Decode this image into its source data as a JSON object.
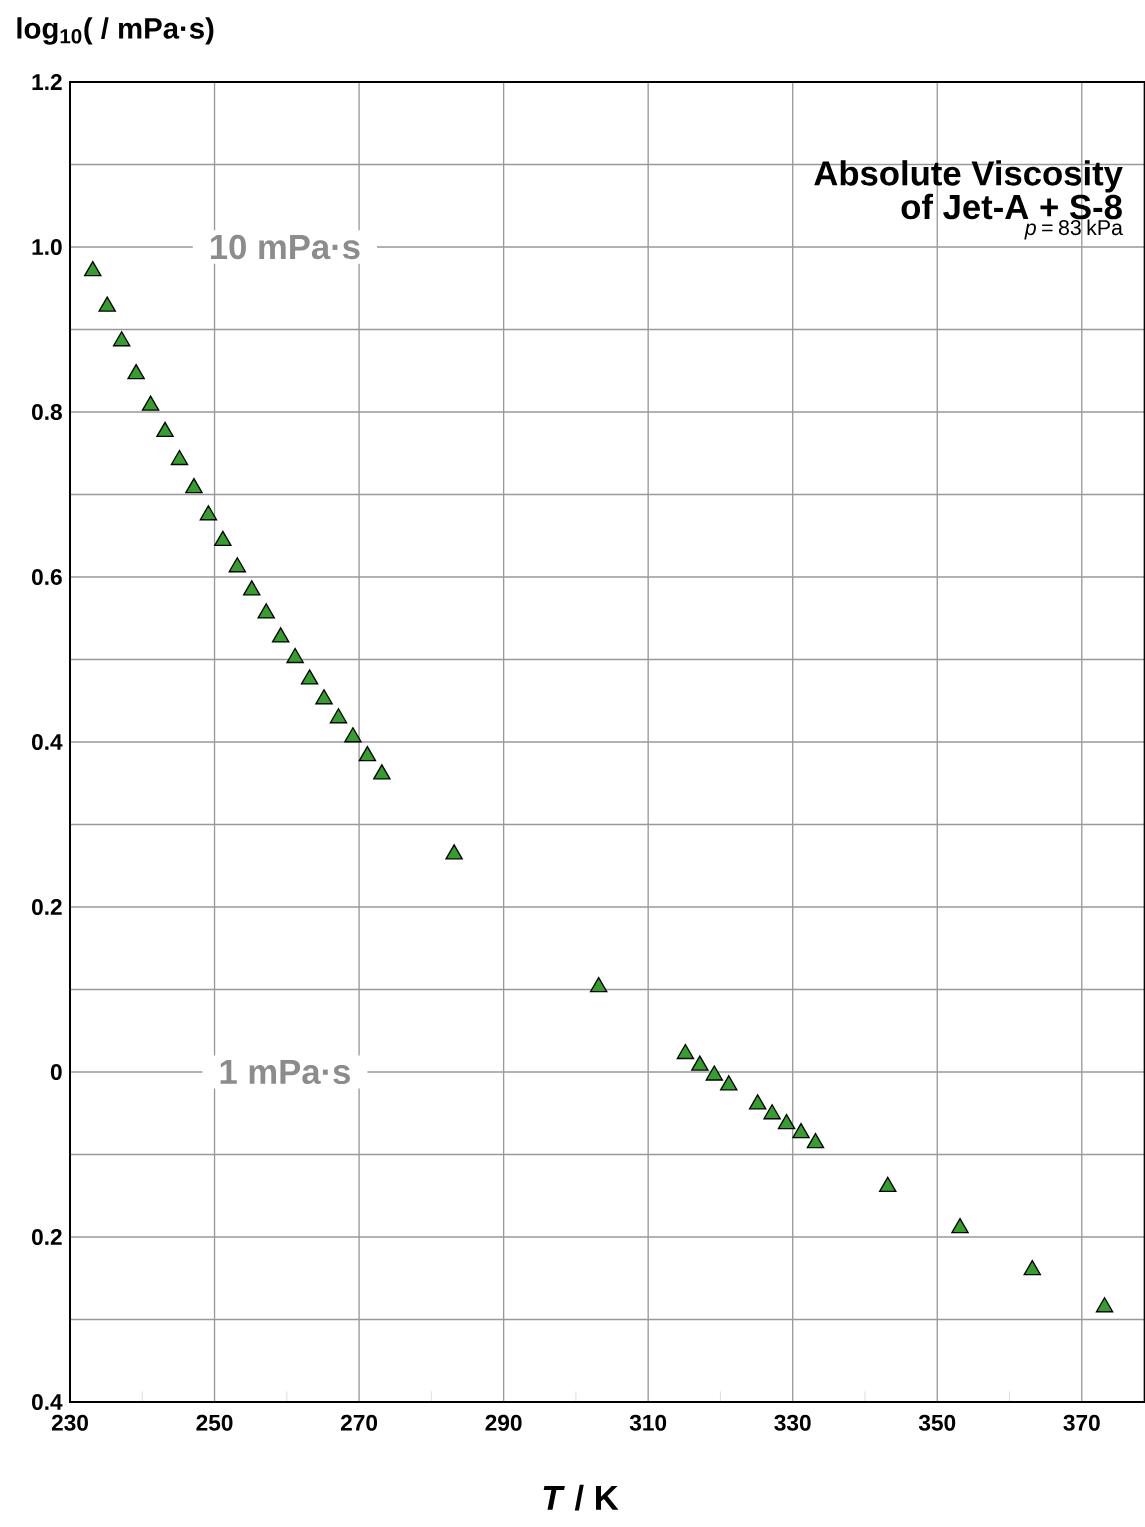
{
  "chart_data": {
    "type": "scatter",
    "title": "Absolute Viscosity of  Jet-A + S-8",
    "subtitle": "*p* = 83 kPa",
    "xlabel": "*T* / K",
    "ylabel": "log$_{10}$(   / mPa·s)",
    "x": [
      233.15,
      235.15,
      237.15,
      239.15,
      241.15,
      243.15,
      245.15,
      247.15,
      249.15,
      251.15,
      253.15,
      255.15,
      257.15,
      259.15,
      261.15,
      263.15,
      265.15,
      267.15,
      269.15,
      271.15,
      273.15,
      283.15,
      303.15,
      315.15,
      317.15,
      319.15,
      321.15,
      325.15,
      327.15,
      329.15,
      331.15,
      333.15,
      343.15,
      353.15,
      363.15,
      373.15
    ],
    "series": [
      {
        "color": "#33a02c",
        "values": [
          0.971,
          0.928,
          0.886,
          0.846,
          0.808,
          0.776,
          0.742,
          0.708,
          0.675,
          0.644,
          0.612,
          0.584,
          0.556,
          0.527,
          0.502,
          0.476,
          0.452,
          0.429,
          0.406,
          0.383,
          0.361,
          0.264,
          0.103,
          0.022,
          0.008,
          -0.004,
          -0.016,
          -0.039,
          -0.051,
          -0.063,
          -0.074,
          -0.086,
          -0.139,
          -0.189,
          -0.24,
          -0.285
        ]
      }
    ],
    "marker": "triangle",
    "grid": true,
    "xlim": [
      230,
      378.7
    ],
    "xticks": [
      230,
      250,
      270,
      290,
      310,
      330,
      350,
      370
    ],
    "ylim": [
      -0.4,
      1.2
    ],
    "yticks": [
      {
        "value": -0.4,
        "label": "0.4"
      },
      {
        "value": -0.3,
        "label": null
      },
      {
        "value": -0.2,
        "label": "0.2"
      },
      {
        "value": -0.1,
        "label": null
      },
      0,
      {
        "value": 0.1,
        "label": null
      },
      0.2,
      {
        "value": 0.3,
        "label": null
      },
      0.4,
      {
        "value": 0.5,
        "label": null
      },
      0.6,
      {
        "value": 0.7,
        "label": null
      },
      0.8,
      {
        "value": 0.9,
        "label": null
      },
      {
        "value": 1.0,
        "label": "1.0"
      },
      {
        "value": 1.1,
        "label": null
      },
      1.2
    ],
    "annotations": [
      "10 mPa·s",
      "1 mPa·s"
    ]
  }
}
